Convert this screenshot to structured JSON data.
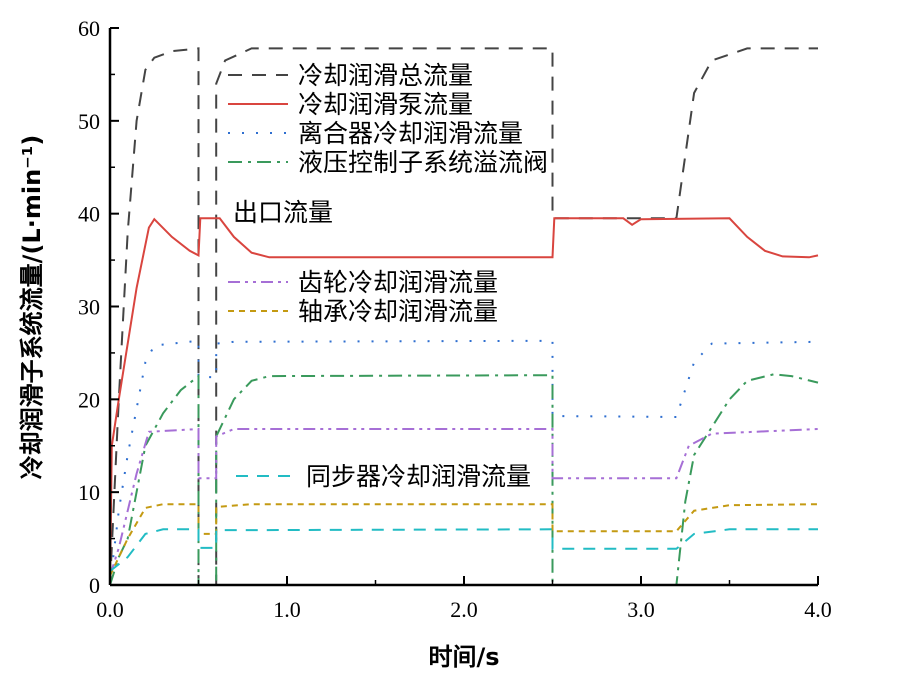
{
  "chart_data": {
    "type": "line",
    "xlabel": "时间/s",
    "ylabel": "冷却润滑子系统流量/(L·min⁻¹)",
    "xlim": [
      0,
      4.0
    ],
    "ylim": [
      0,
      60
    ],
    "xticks": [
      0,
      1,
      2,
      3,
      4
    ],
    "xtick_labels": [
      "0.0",
      "1.0",
      "2.0",
      "3.0",
      "4.0"
    ],
    "yticks": [
      0,
      10,
      20,
      30,
      40,
      50,
      60
    ],
    "ytick_labels": [
      "0",
      "10",
      "20",
      "30",
      "40",
      "50",
      "60"
    ],
    "grid": false,
    "series": [
      {
        "name": "冷却润滑总流量",
        "color": "#444444",
        "dash": "14,10",
        "points": [
          [
            0,
            0
          ],
          [
            0.05,
            20
          ],
          [
            0.1,
            38
          ],
          [
            0.15,
            50
          ],
          [
            0.2,
            55.5
          ],
          [
            0.25,
            56.8
          ],
          [
            0.35,
            57.5
          ],
          [
            0.5,
            57.8
          ],
          [
            0.5,
            0
          ],
          [
            0.6,
            0
          ],
          [
            0.6,
            54
          ],
          [
            0.65,
            56.5
          ],
          [
            0.8,
            57.8
          ],
          [
            2.5,
            57.8
          ],
          [
            2.5,
            39.5
          ],
          [
            3.2,
            39.5
          ],
          [
            3.3,
            53
          ],
          [
            3.4,
            56.5
          ],
          [
            3.6,
            57.8
          ],
          [
            4.0,
            57.8
          ]
        ]
      },
      {
        "name": "冷却润滑泵流量",
        "color": "#d9453f",
        "dash": "",
        "points": [
          [
            0,
            0
          ],
          [
            0.01,
            15
          ],
          [
            0.05,
            20
          ],
          [
            0.15,
            32
          ],
          [
            0.22,
            38.5
          ],
          [
            0.25,
            39.4
          ],
          [
            0.35,
            37.5
          ],
          [
            0.45,
            36
          ],
          [
            0.5,
            35.5
          ],
          [
            0.51,
            39.5
          ],
          [
            0.62,
            39.5
          ],
          [
            0.7,
            37.5
          ],
          [
            0.8,
            35.8
          ],
          [
            0.9,
            35.3
          ],
          [
            2.5,
            35.3
          ],
          [
            2.51,
            39.5
          ],
          [
            2.9,
            39.5
          ],
          [
            2.95,
            38.8
          ],
          [
            3.0,
            39.4
          ],
          [
            3.5,
            39.5
          ],
          [
            3.6,
            37.5
          ],
          [
            3.7,
            36
          ],
          [
            3.8,
            35.4
          ],
          [
            3.95,
            35.3
          ],
          [
            4.0,
            35.5
          ]
        ]
      },
      {
        "name": "离合器冷却润滑流量",
        "color": "#2f6fd0",
        "dash": "2,12",
        "points": [
          [
            0,
            0
          ],
          [
            0.05,
            8
          ],
          [
            0.1,
            14
          ],
          [
            0.15,
            19
          ],
          [
            0.2,
            24
          ],
          [
            0.25,
            25.8
          ],
          [
            0.5,
            26.3
          ],
          [
            0.5,
            22.4
          ],
          [
            0.6,
            22.4
          ],
          [
            0.6,
            26
          ],
          [
            0.7,
            26.2
          ],
          [
            2.5,
            26.3
          ],
          [
            2.5,
            18.2
          ],
          [
            3.2,
            18.1
          ],
          [
            3.3,
            24
          ],
          [
            3.4,
            26
          ],
          [
            4.0,
            26.2
          ]
        ]
      },
      {
        "name": "液压控制子系统溢流阀出口流量",
        "color": "#3a9a5c",
        "dash": "14,6,3,6",
        "points": [
          [
            0,
            0
          ],
          [
            0.05,
            3
          ],
          [
            0.1,
            5
          ],
          [
            0.2,
            15
          ],
          [
            0.3,
            18.5
          ],
          [
            0.4,
            21
          ],
          [
            0.5,
            22.5
          ],
          [
            0.5,
            0
          ],
          [
            0.6,
            0
          ],
          [
            0.6,
            16
          ],
          [
            0.7,
            20
          ],
          [
            0.8,
            22
          ],
          [
            0.9,
            22.5
          ],
          [
            2.5,
            22.6
          ],
          [
            2.5,
            0
          ],
          [
            3.2,
            0
          ],
          [
            3.25,
            9
          ],
          [
            3.3,
            14
          ],
          [
            3.4,
            17
          ],
          [
            3.5,
            20
          ],
          [
            3.6,
            22
          ],
          [
            3.75,
            22.7
          ],
          [
            3.85,
            22.5
          ],
          [
            4.0,
            21.8
          ]
        ]
      },
      {
        "name": "齿轮冷却润滑流量",
        "color": "#a66fd6",
        "dash": "12,5,3,5,3,5",
        "points": [
          [
            0,
            1
          ],
          [
            0.05,
            4
          ],
          [
            0.15,
            12
          ],
          [
            0.22,
            16.5
          ],
          [
            0.5,
            16.8
          ],
          [
            0.5,
            11.5
          ],
          [
            0.6,
            11.5
          ],
          [
            0.6,
            16
          ],
          [
            0.7,
            16.8
          ],
          [
            2.5,
            16.8
          ],
          [
            2.5,
            11.5
          ],
          [
            3.2,
            11.5
          ],
          [
            3.27,
            15
          ],
          [
            3.4,
            16.3
          ],
          [
            4.0,
            16.8
          ]
        ]
      },
      {
        "name": "轴承冷却润滑流量",
        "color": "#c49a12",
        "dash": "6,5",
        "points": [
          [
            0,
            1
          ],
          [
            0.1,
            5
          ],
          [
            0.2,
            8.3
          ],
          [
            0.3,
            8.7
          ],
          [
            0.5,
            8.7
          ],
          [
            0.5,
            5.5
          ],
          [
            0.6,
            5.5
          ],
          [
            0.6,
            8.4
          ],
          [
            0.8,
            8.7
          ],
          [
            2.5,
            8.7
          ],
          [
            2.5,
            5.8
          ],
          [
            3.2,
            5.8
          ],
          [
            3.3,
            8
          ],
          [
            3.5,
            8.6
          ],
          [
            4.0,
            8.7
          ]
        ]
      },
      {
        "name": "同步器冷却润滑流量",
        "color": "#22bcc4",
        "dash": "12,9",
        "points": [
          [
            0,
            1.5
          ],
          [
            0.1,
            3
          ],
          [
            0.2,
            5.5
          ],
          [
            0.3,
            6
          ],
          [
            0.5,
            6
          ],
          [
            0.5,
            4
          ],
          [
            0.6,
            4
          ],
          [
            0.6,
            5.9
          ],
          [
            2.5,
            6
          ],
          [
            2.5,
            3.9
          ],
          [
            3.2,
            3.9
          ],
          [
            3.3,
            5.5
          ],
          [
            3.5,
            6
          ],
          [
            4.0,
            6
          ]
        ]
      }
    ],
    "legend": {
      "placement": "inside",
      "entries": [
        "冷却润滑总流量",
        "冷却润滑泵流量",
        "离合器冷却润滑流量",
        "液压控制子系统溢流阀",
        "出口流量",
        "齿轮冷却润滑流量",
        "轴承冷却润滑流量",
        "同步器冷却润滑流量"
      ]
    }
  }
}
